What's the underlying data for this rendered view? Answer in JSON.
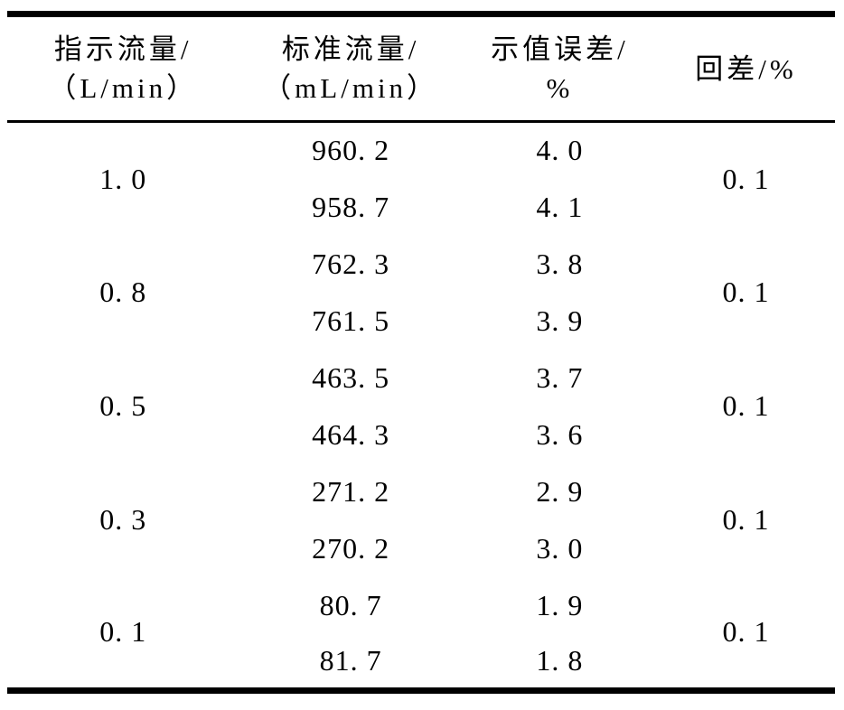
{
  "colors": {
    "background": "#ffffff",
    "text": "#000000",
    "rule": "#000000"
  },
  "table": {
    "columns": [
      {
        "line1": "指示流量/",
        "line2": "（L/min）"
      },
      {
        "line1": "标准流量/",
        "line2": "（mL/min）"
      },
      {
        "line1": "示值误差/",
        "line2": "%"
      },
      {
        "line1": "回差/%"
      }
    ],
    "groups": [
      {
        "indicated": "1. 0",
        "standard": [
          "960. 2",
          "958. 7"
        ],
        "error": [
          "4. 0",
          "4. 1"
        ],
        "hysteresis": "0. 1"
      },
      {
        "indicated": "0. 8",
        "standard": [
          "762. 3",
          "761. 5"
        ],
        "error": [
          "3. 8",
          "3. 9"
        ],
        "hysteresis": "0. 1"
      },
      {
        "indicated": "0. 5",
        "standard": [
          "463. 5",
          "464. 3"
        ],
        "error": [
          "3. 7",
          "3. 6"
        ],
        "hysteresis": "0. 1"
      },
      {
        "indicated": "0. 3",
        "standard": [
          "271. 2",
          "270. 2"
        ],
        "error": [
          "2. 9",
          "3. 0"
        ],
        "hysteresis": "0. 1"
      },
      {
        "indicated": "0. 1",
        "standard": [
          "80. 7",
          "81. 7"
        ],
        "error": [
          "1. 9",
          "1. 8"
        ],
        "hysteresis": "0. 1"
      }
    ]
  }
}
